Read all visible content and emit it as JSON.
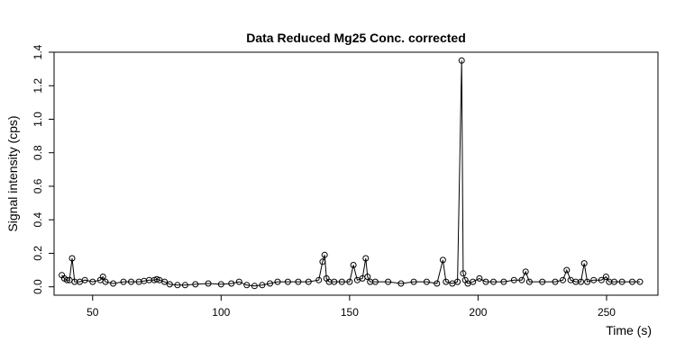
{
  "chart_data": {
    "type": "line",
    "title": "Data Reduced Mg25 Conc. corrected",
    "xlabel": "Time (s)",
    "ylabel": "Signal intensity (cps)",
    "xlim": [
      35,
      270
    ],
    "ylim": [
      -0.05,
      1.4
    ],
    "xticks": [
      50,
      100,
      150,
      200,
      250
    ],
    "yticks": [
      0.0,
      0.2,
      0.4,
      0.6,
      0.8,
      1.0,
      1.2,
      1.4
    ],
    "xtick_labels": [
      "50",
      "100",
      "150",
      "200",
      "250"
    ],
    "ytick_labels": [
      "0.0",
      "0.2",
      "0.4",
      "0.6",
      "0.8",
      "1.0",
      "1.2",
      "1.4"
    ],
    "grid": false,
    "legend": "none",
    "marker": "open-circle",
    "series": [
      {
        "x": [
          38,
          39,
          40,
          41,
          42,
          43,
          45,
          47,
          50,
          53,
          54,
          55,
          58,
          62,
          65,
          68,
          70,
          72,
          74,
          75,
          76,
          78,
          80,
          83,
          86,
          90,
          95,
          100,
          104,
          107,
          110,
          113,
          116,
          119,
          122,
          126,
          130,
          134,
          138,
          139.5,
          140.3,
          141,
          142,
          144,
          147,
          150,
          151.5,
          153,
          155,
          156.3,
          157,
          158,
          160,
          165,
          170,
          175,
          180,
          184,
          186.3,
          187.5,
          190,
          192,
          193.6,
          194.2,
          195,
          196,
          198,
          200.5,
          203,
          206,
          210,
          214,
          217,
          218.5,
          220,
          225,
          230,
          233,
          234.5,
          236,
          238,
          240,
          241.3,
          242.5,
          245,
          248,
          249.8,
          251,
          253,
          256,
          260,
          263
        ],
        "y": [
          0.07,
          0.05,
          0.04,
          0.04,
          0.17,
          0.03,
          0.03,
          0.04,
          0.03,
          0.04,
          0.06,
          0.03,
          0.02,
          0.03,
          0.03,
          0.03,
          0.035,
          0.04,
          0.04,
          0.045,
          0.04,
          0.03,
          0.015,
          0.01,
          0.01,
          0.015,
          0.02,
          0.015,
          0.02,
          0.03,
          0.01,
          0.005,
          0.01,
          0.02,
          0.03,
          0.03,
          0.03,
          0.03,
          0.04,
          0.15,
          0.19,
          0.05,
          0.03,
          0.03,
          0.03,
          0.03,
          0.13,
          0.04,
          0.05,
          0.17,
          0.06,
          0.03,
          0.03,
          0.03,
          0.02,
          0.03,
          0.03,
          0.02,
          0.16,
          0.03,
          0.02,
          0.03,
          1.35,
          0.08,
          0.04,
          0.02,
          0.03,
          0.05,
          0.03,
          0.03,
          0.03,
          0.04,
          0.04,
          0.09,
          0.03,
          0.03,
          0.03,
          0.04,
          0.1,
          0.04,
          0.03,
          0.03,
          0.14,
          0.03,
          0.04,
          0.04,
          0.06,
          0.03,
          0.03,
          0.03,
          0.03,
          0.03
        ]
      }
    ]
  }
}
